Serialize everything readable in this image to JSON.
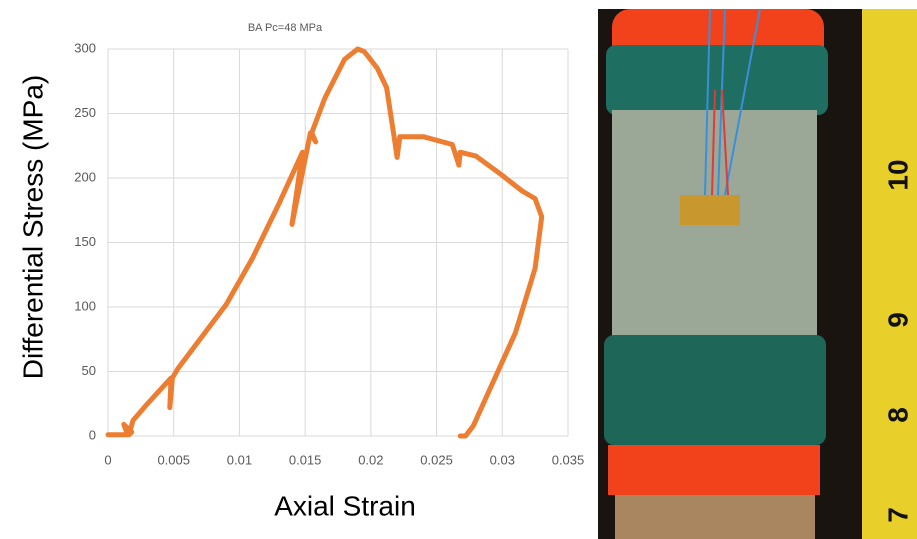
{
  "chart_data": {
    "type": "line",
    "title": "BA Pc=48 MPa",
    "x_label": "Axial Strain",
    "y_label": "Differential Stress (MPa)",
    "x": [
      0,
      0.0015,
      0.0012,
      0.0018,
      0.0016,
      0.0019,
      0.003,
      0.0048,
      0.0047,
      0.0049,
      0.0053,
      0.007,
      0.009,
      0.011,
      0.013,
      0.0148,
      0.014,
      0.0154,
      0.0158,
      0.0155,
      0.0165,
      0.018,
      0.019,
      0.0195,
      0.0205,
      0.0212,
      0.0218,
      0.022,
      0.0222,
      0.024,
      0.0262,
      0.0267,
      0.0268,
      0.028,
      0.03,
      0.0315,
      0.0325,
      0.033,
      0.0325,
      0.031,
      0.029,
      0.0278,
      0.0272,
      0.0268
    ],
    "values": [
      1,
      1,
      9,
      3,
      1,
      12,
      25,
      45,
      22,
      45,
      52,
      75,
      102,
      138,
      180,
      220,
      164,
      235,
      228,
      235,
      262,
      292,
      300,
      298,
      285,
      270,
      230,
      216,
      232,
      232,
      226,
      210,
      220,
      217,
      202,
      190,
      184,
      170,
      130,
      80,
      35,
      8,
      0,
      0
    ],
    "color": "#ed7d31",
    "xlim": [
      0,
      0.035
    ],
    "xticks": [
      0,
      0.005,
      0.01,
      0.015,
      0.02,
      0.025,
      0.03,
      0.035
    ],
    "ylim": [
      0,
      300
    ],
    "yticks": [
      0,
      50,
      100,
      150,
      200,
      250,
      300
    ],
    "grid": true
  },
  "photo_labels": [
    "10",
    "9",
    "8",
    "7"
  ]
}
